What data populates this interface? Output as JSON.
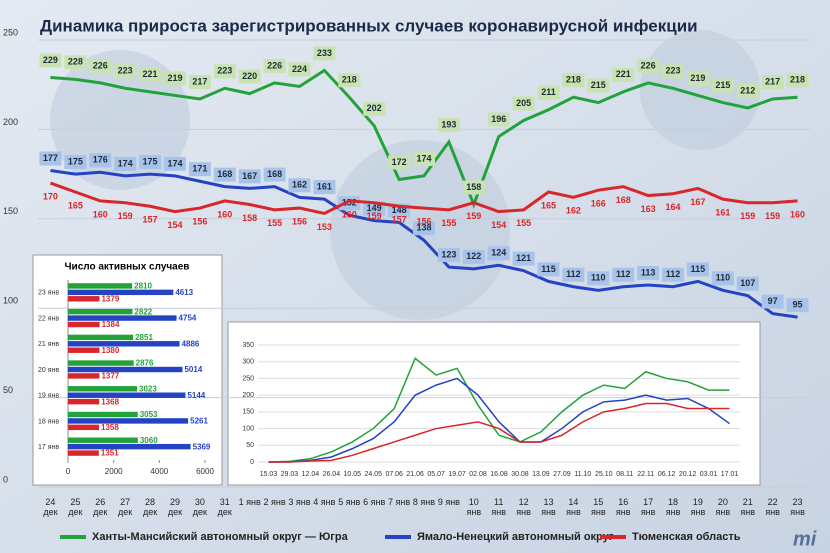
{
  "chart_data": [
    {
      "type": "line",
      "title": "Динамика прироста зарегистрированных случаев коронавирусной инфекции",
      "categories": [
        "24 дек",
        "25 дек",
        "26 дек",
        "27 дек",
        "28 дек",
        "29 дек",
        "30 дек",
        "31 дек",
        "1 янв",
        "2 янв",
        "3 янв",
        "4 янв",
        "5 янв",
        "6 янв",
        "7 янв",
        "8 янв",
        "9 янв",
        "10 янв",
        "11 янв",
        "12 янв",
        "13 янв",
        "14 янв",
        "15 янв",
        "16 янв",
        "17 янв",
        "18 янв",
        "19 янв",
        "20 янв",
        "21 янв",
        "22 янв",
        "23 янв"
      ],
      "series": [
        {
          "name": "Ханты-Мансийский автономный округ — Югра",
          "color": "#22a33a",
          "values": [
            229,
            228,
            226,
            223,
            221,
            219,
            217,
            223,
            220,
            226,
            224,
            233,
            218,
            202,
            172,
            174,
            193,
            158,
            196,
            205,
            211,
            218,
            215,
            221,
            226,
            223,
            219,
            215,
            212,
            217,
            218
          ]
        },
        {
          "name": "Ямало-Ненецкий автономный округ",
          "color": "#2443c4",
          "values": [
            177,
            175,
            176,
            174,
            175,
            174,
            171,
            168,
            167,
            168,
            162,
            161,
            152,
            149,
            148,
            138,
            123,
            122,
            124,
            121,
            115,
            112,
            110,
            112,
            113,
            112,
            115,
            110,
            107,
            97,
            95
          ]
        },
        {
          "name": "Тюменская область",
          "color": "#d8262b",
          "values": [
            170,
            165,
            160,
            159,
            157,
            154,
            156,
            160,
            158,
            155,
            156,
            153,
            160,
            159,
            157,
            156,
            155,
            159,
            154,
            155,
            165,
            162,
            166,
            168,
            163,
            164,
            167,
            161,
            159,
            159,
            160
          ]
        }
      ],
      "ylim": [
        0,
        250
      ],
      "yticks": [
        0,
        50,
        100,
        150,
        200,
        250
      ],
      "grid": true,
      "data_labels": true
    },
    {
      "type": "bar",
      "orientation": "horizontal",
      "title": "Число активных случаев",
      "categories": [
        "23 янв",
        "22 янв",
        "21 янв",
        "20 янв",
        "19 янв",
        "18 янв",
        "17 янв"
      ],
      "series": [
        {
          "color": "#22a33a",
          "values": [
            2810,
            2822,
            2851,
            2876,
            3023,
            3053,
            3060
          ]
        },
        {
          "color": "#2443c4",
          "values": [
            4613,
            4754,
            4886,
            5014,
            5144,
            5261,
            5369
          ]
        },
        {
          "color": "#d8262b",
          "values": [
            1379,
            1384,
            1380,
            1377,
            1368,
            1358,
            1351
          ]
        }
      ],
      "xlim": [
        0,
        6000
      ],
      "xticks": [
        0,
        2000,
        4000,
        6000
      ],
      "data_labels": true
    },
    {
      "type": "line",
      "categories": [
        "15.03",
        "29.03",
        "12.04",
        "26.04",
        "10.05",
        "24.05",
        "07.06",
        "21.06",
        "05.07",
        "19.07",
        "02.08",
        "16.08",
        "30.08",
        "13.09",
        "27.09",
        "11.10",
        "25.10",
        "08.11",
        "22.11",
        "06.12",
        "20.12",
        "03.01",
        "17.01"
      ],
      "series": [
        {
          "color": "#22a33a",
          "values": [
            0,
            2,
            10,
            30,
            60,
            100,
            160,
            310,
            260,
            280,
            170,
            80,
            60,
            90,
            150,
            200,
            230,
            220,
            270,
            250,
            240,
            215,
            215
          ]
        },
        {
          "color": "#2443c4",
          "values": [
            0,
            0,
            5,
            15,
            40,
            70,
            120,
            200,
            230,
            250,
            200,
            120,
            60,
            60,
            100,
            150,
            180,
            185,
            200,
            185,
            190,
            160,
            115
          ]
        },
        {
          "color": "#d8262b",
          "values": [
            0,
            0,
            3,
            5,
            20,
            40,
            60,
            80,
            100,
            110,
            120,
            100,
            60,
            60,
            80,
            120,
            150,
            160,
            175,
            175,
            160,
            160,
            160
          ]
        }
      ],
      "ylim": [
        0,
        350
      ],
      "yticks": [
        0,
        50,
        100,
        150,
        200,
        250,
        300,
        350
      ],
      "grid": true,
      "data_labels": false
    }
  ]
}
